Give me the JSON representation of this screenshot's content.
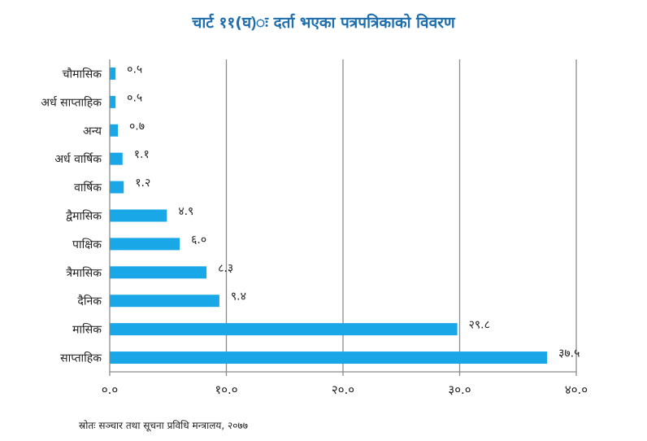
{
  "title": "चार्ट ११(घ)ः दर्ता भएका पत्रपत्रिकाको विवरण",
  "source": "स्रोतः सञ्चार तथा सूचना प्रविधि मन्त्रालय, २०७७",
  "colors": {
    "bar": "#1aa7e8",
    "title": "#1f6fae",
    "grid": "#8c8c8c",
    "text": "#222222"
  },
  "chart_data": {
    "type": "bar",
    "orientation": "horizontal",
    "categories": [
      "चौमासिक",
      "अर्ध साप्ताहिक",
      "अन्य",
      "अर्ध वार्षिक",
      "वार्षिक",
      "द्वैमासिक",
      "पाक्षिक",
      "त्रैमासिक",
      "दैनिक",
      "मासिक",
      "साप्ताहिक"
    ],
    "values": [
      0.5,
      0.5,
      0.7,
      1.1,
      1.2,
      4.9,
      6.0,
      8.3,
      9.4,
      29.8,
      37.5
    ],
    "value_labels": [
      "०.५",
      "०.५",
      "०.७",
      "१.१",
      "१.२",
      "४.९",
      "६.०",
      "८.३",
      "९.४",
      "२९.८",
      "३७.५"
    ],
    "xlim": [
      0,
      40
    ],
    "xticks": [
      0,
      10,
      20,
      30,
      40
    ],
    "xtick_labels": [
      "०.०",
      "१०.०",
      "२०.०",
      "३०.०",
      "४०.०"
    ],
    "grid": "vertical"
  }
}
